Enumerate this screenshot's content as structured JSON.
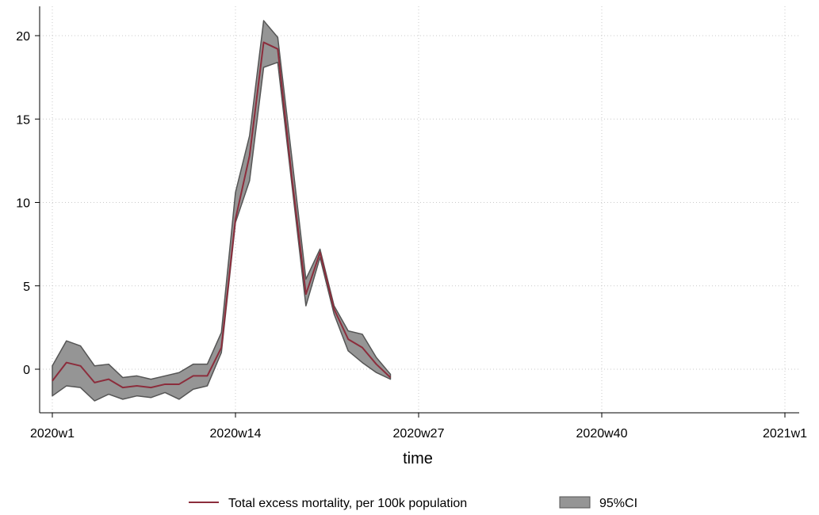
{
  "chart_data": {
    "type": "line",
    "title": "",
    "xlabel": "time",
    "ylabel": "",
    "x_ticks": [
      {
        "week": 1,
        "label": "2020w1"
      },
      {
        "week": 14,
        "label": "2020w14"
      },
      {
        "week": 27,
        "label": "2020w27"
      },
      {
        "week": 40,
        "label": "2020w40"
      },
      {
        "week": 53,
        "label": "2021w1"
      }
    ],
    "y_ticks": [
      0,
      5,
      10,
      15,
      20
    ],
    "xlim": [
      1,
      53
    ],
    "ylim": [
      -2.5,
      21.5
    ],
    "grid": true,
    "legend_position": "bottom",
    "legend": {
      "line_label": "Total excess mortality, per 100k population",
      "band_label": "95%CI"
    },
    "colors": {
      "line": "#8c2d3c",
      "band_fill": "#959595",
      "band_edge": "#555555"
    },
    "series": [
      {
        "name": "Total excess mortality, per 100k population",
        "x": [
          1,
          2,
          3,
          4,
          5,
          6,
          7,
          8,
          9,
          10,
          11,
          12,
          13,
          14,
          15,
          16,
          17,
          18,
          19,
          20,
          21,
          22,
          23,
          24,
          25
        ],
        "values": [
          -0.7,
          0.4,
          0.2,
          -0.8,
          -0.6,
          -1.1,
          -1.0,
          -1.1,
          -0.9,
          -0.9,
          -0.4,
          -0.4,
          1.3,
          9.0,
          12.8,
          19.6,
          19.2,
          11.5,
          4.5,
          7.0,
          3.6,
          1.8,
          1.3,
          0.3,
          -0.5
        ],
        "lower": [
          -1.6,
          -1.0,
          -1.1,
          -1.9,
          -1.5,
          -1.8,
          -1.6,
          -1.7,
          -1.4,
          -1.8,
          -1.2,
          -1.0,
          1.0,
          8.8,
          11.3,
          18.1,
          18.4,
          11.1,
          3.8,
          6.7,
          3.3,
          1.1,
          0.4,
          -0.2,
          -0.6
        ],
        "upper": [
          0.2,
          1.7,
          1.4,
          0.2,
          0.3,
          -0.5,
          -0.4,
          -0.6,
          -0.4,
          -0.2,
          0.3,
          0.3,
          2.2,
          10.6,
          14.0,
          20.9,
          19.9,
          12.7,
          5.4,
          7.2,
          3.8,
          2.3,
          2.1,
          0.7,
          -0.3
        ]
      }
    ]
  }
}
